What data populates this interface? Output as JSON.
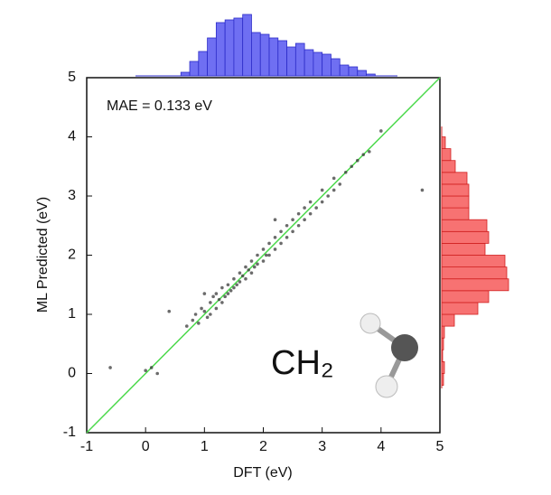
{
  "chart_data": {
    "type": "scatter",
    "x_label": "DFT (eV)",
    "y_label": "ML Predicted (eV)",
    "annotation": "MAE = 0.133 eV",
    "molecule_label": "CH₂",
    "xlim": [
      -1,
      5
    ],
    "ylim": [
      -1,
      5
    ],
    "xticks": [
      -1,
      0,
      1,
      2,
      3,
      4,
      5
    ],
    "yticks": [
      -1,
      0,
      1,
      2,
      3,
      4,
      5
    ],
    "color": "#3a3a3a",
    "diagonal_color": "#4cd94c",
    "x": [
      -0.6,
      0.0,
      0.1,
      0.2,
      0.7,
      0.8,
      0.85,
      0.9,
      0.95,
      1.0,
      1.05,
      1.1,
      1.1,
      1.15,
      1.2,
      1.2,
      1.25,
      1.3,
      1.3,
      1.35,
      1.4,
      1.4,
      1.45,
      1.5,
      1.5,
      1.55,
      1.6,
      1.6,
      1.65,
      1.7,
      1.7,
      1.75,
      1.8,
      1.8,
      1.85,
      1.9,
      1.9,
      2.0,
      2.0,
      2.05,
      2.1,
      2.1,
      2.2,
      2.2,
      2.3,
      2.3,
      2.4,
      2.4,
      2.5,
      2.5,
      2.6,
      2.6,
      2.7,
      2.7,
      2.8,
      2.8,
      2.9,
      3.0,
      3.0,
      3.1,
      3.2,
      3.2,
      3.3,
      3.4,
      3.5,
      3.6,
      3.7,
      3.8,
      4.0,
      4.7,
      0.4,
      1.0,
      2.2
    ],
    "y": [
      0.1,
      0.05,
      0.1,
      0.0,
      0.8,
      0.9,
      1.0,
      0.85,
      1.1,
      1.05,
      0.95,
      1.2,
      1.0,
      1.3,
      1.1,
      1.35,
      1.25,
      1.2,
      1.45,
      1.3,
      1.5,
      1.35,
      1.4,
      1.6,
      1.45,
      1.5,
      1.7,
      1.55,
      1.65,
      1.8,
      1.6,
      1.75,
      1.9,
      1.7,
      1.8,
      2.0,
      1.85,
      2.1,
      1.9,
      2.0,
      2.2,
      2.0,
      2.3,
      2.1,
      2.4,
      2.2,
      2.5,
      2.3,
      2.6,
      2.4,
      2.7,
      2.5,
      2.8,
      2.6,
      2.9,
      2.7,
      2.8,
      3.1,
      2.9,
      3.0,
      3.3,
      3.1,
      3.2,
      3.4,
      3.5,
      3.6,
      3.7,
      3.75,
      4.1,
      3.1,
      1.05,
      1.35,
      2.6
    ],
    "top_histogram": {
      "color": "#6f6ff2",
      "edge": "#2c2cc8",
      "bins": [
        0.6,
        0.75,
        0.9,
        1.05,
        1.2,
        1.35,
        1.5,
        1.65,
        1.8,
        1.95,
        2.1,
        2.25,
        2.4,
        2.55,
        2.7,
        2.85,
        3.0,
        3.15,
        3.3,
        3.45,
        3.6,
        3.75,
        3.9
      ],
      "counts": [
        4,
        16,
        27,
        42,
        59,
        62,
        64,
        68,
        48,
        46,
        42,
        39,
        32,
        36,
        29,
        26,
        24,
        19,
        12,
        10,
        6,
        2
      ]
    },
    "right_histogram": {
      "color": "#f77272",
      "edge": "#d02020",
      "bins": [
        -0.2,
        0.0,
        0.2,
        0.4,
        0.6,
        0.8,
        1.0,
        1.2,
        1.4,
        1.6,
        1.8,
        2.0,
        2.2,
        2.4,
        2.6,
        2.8,
        3.0,
        3.2,
        3.4,
        3.6,
        3.8,
        4.0
      ],
      "counts": [
        2,
        3,
        1,
        2,
        3,
        14,
        40,
        52,
        74,
        72,
        70,
        48,
        52,
        50,
        30,
        30,
        30,
        28,
        15,
        10,
        4
      ]
    }
  }
}
